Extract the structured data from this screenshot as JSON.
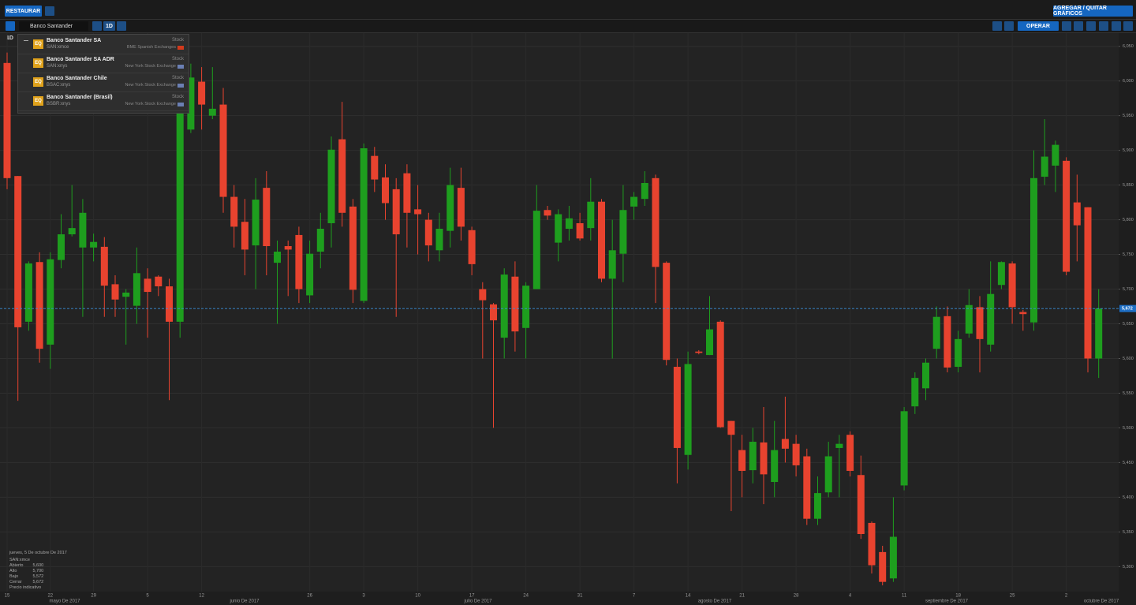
{
  "toolbar": {
    "restore": "RESTAURAR",
    "add_remove": "AGREGAR / QUITAR GRÁFICOS",
    "search_text": "Banco Santander",
    "interval": "1D",
    "trade": "OPERAR"
  },
  "results": [
    {
      "name": "Banco Santander SA",
      "symbol": "SAN:xmce",
      "badge": "EQ",
      "kind": "Stock",
      "exchange": "BME Spanish Exchanges"
    },
    {
      "name": "Banco Santander SA ADR",
      "symbol": "SAN:xnys",
      "badge": "EQ",
      "kind": "Stock",
      "exchange": "New York Stock Exchange"
    },
    {
      "name": "Banco Santander Chile",
      "symbol": "BSAC:xnys",
      "badge": "EQ",
      "kind": "Stock",
      "exchange": "New York Stock Exchange"
    },
    {
      "name": "Banco Santander (Brasil)",
      "symbol": "BSBR:xnys",
      "badge": "EQ",
      "kind": "Stock",
      "exchange": "New York Stock Exchange"
    }
  ],
  "info_panel": {
    "date": "jueves, 5 De octubre De 2017",
    "symbol": "SAN:xmce",
    "rows": [
      [
        "Abierto",
        "5,600"
      ],
      [
        "Alto",
        "5,700"
      ],
      [
        "Bajo",
        "5,572"
      ],
      [
        "Cerrar",
        "5,672"
      ]
    ],
    "note": "Precio indicativo"
  },
  "chart_data": {
    "type": "candlestick",
    "interval_label": "1D",
    "up_color": "#1e9e1e",
    "down_color": "#e8432f",
    "grid": true,
    "categories": [
      "15",
      null,
      null,
      null,
      "22",
      null,
      null,
      null,
      "29",
      null,
      null,
      null,
      null,
      "5",
      null,
      null,
      null,
      null,
      "12",
      null,
      null,
      null,
      null,
      null,
      null,
      null,
      null,
      null,
      "26",
      null,
      null,
      null,
      null,
      "3",
      null,
      null,
      null,
      null,
      "10",
      null,
      null,
      null,
      null,
      "17",
      null,
      null,
      null,
      null,
      "24",
      null,
      null,
      null,
      null,
      "31",
      null,
      null,
      null,
      null,
      "7",
      null,
      null,
      null,
      null,
      "14",
      null,
      null,
      null,
      null,
      "21",
      null,
      null,
      null,
      null,
      "28",
      null,
      null,
      null,
      null,
      "4",
      null,
      null,
      null,
      null,
      "11",
      null,
      null,
      null,
      null,
      "18",
      null,
      null,
      null,
      null,
      "25",
      null,
      null,
      null,
      null,
      "2",
      null,
      null,
      null
    ],
    "x_groups": [
      "mayo De 2017",
      "junio De 2017",
      "julio De 2017",
      "agosto De 2017",
      "septiembre De 2017",
      "octubre De 2017"
    ],
    "open": [
      6026,
      5863,
      5653,
      5739,
      5620,
      5742,
      5779,
      5760,
      5760,
      5761,
      5707,
      5689,
      5676,
      5715,
      5718,
      5704,
      5653,
      5930,
      5999,
      5950,
      5966,
      5833,
      5797,
      5763,
      5846,
      5738,
      5762,
      5778,
      5691,
      5754,
      5795,
      5916,
      5819,
      5683,
      5892,
      5861,
      5844,
      5867,
      5815,
      5800,
      5756,
      5784,
      5846,
      5785,
      5700,
      5678,
      5630,
      5718,
      5644,
      5700,
      5814,
      5767,
      5787,
      5795,
      5788,
      5826,
      5715,
      5751,
      5819,
      5830,
      5860,
      5738,
      5588,
      5461,
      5610,
      5605,
      5653,
      5510,
      5468,
      5439,
      5479,
      5422,
      5484,
      5477,
      5459,
      5369,
      5407,
      5471,
      5490,
      5432,
      5363,
      5321,
      5283,
      5417,
      5531,
      5557,
      5614,
      5661,
      5588,
      5636,
      5674,
      5620,
      5706,
      5737,
      5667,
      5652,
      5862,
      5878,
      5885,
      5825,
      5818,
      5600
    ],
    "high": [
      6041,
      5863,
      5740,
      5753,
      5753,
      5808,
      5850,
      5830,
      5780,
      5775,
      5720,
      5700,
      5760,
      5730,
      5720,
      5715,
      5990,
      6025,
      6020,
      6020,
      5990,
      5850,
      5830,
      5860,
      5870,
      5770,
      5770,
      5790,
      5770,
      5810,
      5920,
      5970,
      5830,
      5910,
      5905,
      5880,
      5860,
      5880,
      5850,
      5810,
      5810,
      5875,
      5875,
      5790,
      5710,
      5680,
      5730,
      5740,
      5710,
      5850,
      5820,
      5815,
      5820,
      5810,
      5860,
      5830,
      5800,
      5850,
      5840,
      5870,
      5865,
      5740,
      5600,
      5610,
      5612,
      5690,
      5655,
      5510,
      5490,
      5500,
      5530,
      5510,
      5545,
      5490,
      5470,
      5430,
      5480,
      5490,
      5495,
      5460,
      5365,
      5330,
      5400,
      5530,
      5580,
      5600,
      5675,
      5675,
      5640,
      5700,
      5690,
      5740,
      5740,
      5740,
      5670,
      5900,
      5945,
      5914,
      5890,
      5865,
      5818,
      5700
    ],
    "low": [
      5844,
      5539,
      5640,
      5594,
      5585,
      5730,
      5776,
      5660,
      5740,
      5660,
      5660,
      5620,
      5650,
      5630,
      5690,
      5540,
      5630,
      5925,
      5930,
      5945,
      5810,
      5760,
      5720,
      5700,
      5720,
      5650,
      5690,
      5680,
      5680,
      5730,
      5760,
      5790,
      5680,
      5680,
      5840,
      5800,
      5660,
      5760,
      5750,
      5740,
      5740,
      5760,
      5770,
      5720,
      5600,
      5500,
      5600,
      5610,
      5600,
      5700,
      5800,
      5740,
      5770,
      5770,
      5770,
      5710,
      5600,
      5710,
      5800,
      5820,
      5680,
      5590,
      5420,
      5440,
      5606,
      5605,
      5500,
      5380,
      5400,
      5420,
      5390,
      5400,
      5450,
      5430,
      5360,
      5360,
      5400,
      5400,
      5430,
      5340,
      5290,
      5273,
      5278,
      5410,
      5520,
      5540,
      5600,
      5580,
      5580,
      5630,
      5580,
      5610,
      5700,
      5650,
      5640,
      5640,
      5850,
      5840,
      5720,
      5740,
      5580,
      5572
    ],
    "close": [
      5860,
      5645,
      5737,
      5614,
      5743,
      5779,
      5788,
      5810,
      5768,
      5705,
      5685,
      5695,
      5723,
      5696,
      5704,
      5653,
      5958,
      6005,
      5966,
      5960,
      5833,
      5790,
      5757,
      5829,
      5762,
      5754,
      5757,
      5700,
      5751,
      5787,
      5901,
      5810,
      5699,
      5903,
      5858,
      5824,
      5779,
      5810,
      5808,
      5763,
      5787,
      5850,
      5790,
      5736,
      5684,
      5655,
      5721,
      5639,
      5705,
      5813,
      5806,
      5808,
      5802,
      5773,
      5826,
      5715,
      5756,
      5814,
      5833,
      5853,
      5732,
      5598,
      5471,
      5592,
      5608,
      5642,
      5501,
      5490,
      5438,
      5480,
      5433,
      5468,
      5470,
      5446,
      5369,
      5406,
      5459,
      5477,
      5438,
      5347,
      5302,
      5278,
      5343,
      5524,
      5572,
      5594,
      5660,
      5587,
      5628,
      5677,
      5628,
      5693,
      5739,
      5674,
      5664,
      5860,
      5891,
      5908,
      5725,
      5792,
      5600,
      5672
    ],
    "last_price": {
      "value": 5672,
      "label": "5,672"
    },
    "ylim": [
      5264,
      6069
    ],
    "yticks": [
      {
        "value": 5300,
        "label": "5,300"
      },
      {
        "value": 5350,
        "label": "5,350"
      },
      {
        "value": 5400,
        "label": "5,400"
      },
      {
        "value": 5450,
        "label": "5,450"
      },
      {
        "value": 5500,
        "label": "5,500"
      },
      {
        "value": 5550,
        "label": "5,550"
      },
      {
        "value": 5600,
        "label": "5,600"
      },
      {
        "value": 5650,
        "label": "5,650"
      },
      {
        "value": 5700,
        "label": "5,700"
      },
      {
        "value": 5750,
        "label": "5,750"
      },
      {
        "value": 5800,
        "label": "5,800"
      },
      {
        "value": 5850,
        "label": "5,850"
      },
      {
        "value": 5900,
        "label": "5,900"
      },
      {
        "value": 5950,
        "label": "5,950"
      },
      {
        "value": 6000,
        "label": "6,000"
      },
      {
        "value": 6050,
        "label": "6,050"
      }
    ]
  }
}
